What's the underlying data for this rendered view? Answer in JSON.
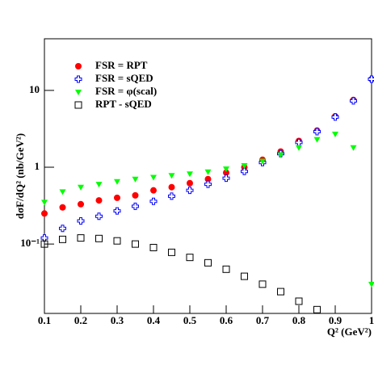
{
  "chart_data": {
    "type": "scatter",
    "ylabel": "dσF/dQ² (nb/GeV²)",
    "xlabel": "Q² (GeV²)",
    "x": [
      0.1,
      0.15,
      0.2,
      0.25,
      0.3,
      0.35,
      0.4,
      0.45,
      0.5,
      0.55,
      0.6,
      0.65,
      0.7,
      0.75,
      0.8,
      0.85,
      0.9,
      0.95,
      1.0
    ],
    "series": [
      {
        "name": "FSR = RPT",
        "color": "#ff0000",
        "marker": "circle",
        "values": [
          0.25,
          0.3,
          0.33,
          0.37,
          0.4,
          0.43,
          0.5,
          0.55,
          0.62,
          0.7,
          0.85,
          1.0,
          1.25,
          1.6,
          2.2,
          3.0,
          4.6,
          7.5,
          14
        ]
      },
      {
        "name": "FSR = sQED",
        "color": "#0000ff",
        "marker": "cross",
        "values": [
          0.12,
          0.16,
          0.2,
          0.23,
          0.27,
          0.31,
          0.36,
          0.42,
          0.5,
          0.6,
          0.72,
          0.88,
          1.15,
          1.5,
          2.1,
          2.9,
          4.5,
          7.3,
          14
        ]
      },
      {
        "name": "FSR = φ(scal)",
        "color": "#00ff00",
        "marker": "triangle",
        "values": [
          0.35,
          0.48,
          0.55,
          0.6,
          0.65,
          0.7,
          0.74,
          0.78,
          0.82,
          0.87,
          0.95,
          1.05,
          1.2,
          1.45,
          1.8,
          2.3,
          2.7,
          1.8,
          0.03
        ]
      },
      {
        "name": "RPT - sQED",
        "color": "#000000",
        "marker": "square",
        "values": [
          0.1,
          0.115,
          0.12,
          0.118,
          0.11,
          0.1,
          0.09,
          0.078,
          0.067,
          0.057,
          0.047,
          0.038,
          0.03,
          0.024,
          0.018,
          0.014,
          null,
          null,
          null
        ]
      }
    ],
    "xlim": [
      0.1,
      1.0
    ],
    "xticks": [
      0.1,
      0.2,
      0.3,
      0.4,
      0.5,
      0.6,
      0.7,
      0.8,
      0.9,
      1
    ],
    "ylim": [
      0.0125,
      47
    ],
    "log_y": true,
    "yticks": [
      {
        "value": 0.1,
        "label": "10⁻¹"
      },
      1,
      10
    ]
  }
}
